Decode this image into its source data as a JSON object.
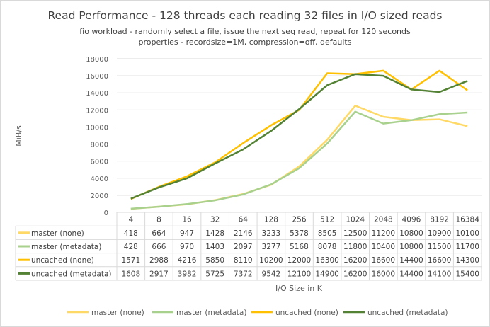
{
  "chart_data": {
    "type": "line",
    "title": "Read Performance - 128 threads each reading 32 files in I/O sized reads",
    "subtitles": [
      "fio workload - randomly select a file, issue the next seq read, repeat for 120 seconds",
      "properties - recordsize=1M, compression=off, defaults"
    ],
    "xlabel": "I/O Size in K",
    "ylabel": "MiB/s",
    "ylim": [
      0,
      18000
    ],
    "yticks": [
      0,
      2000,
      4000,
      6000,
      8000,
      10000,
      12000,
      14000,
      16000,
      18000
    ],
    "grid": true,
    "legend_position": "bottom",
    "categories": [
      "4",
      "8",
      "16",
      "32",
      "64",
      "128",
      "256",
      "512",
      "1024",
      "2048",
      "4096",
      "8192",
      "16384"
    ],
    "series": [
      {
        "name": "master (none)",
        "color": "#FFD966",
        "values": [
          418,
          664,
          947,
          1428,
          2146,
          3233,
          5378,
          8505,
          12500,
          11200,
          10800,
          10900,
          10100
        ]
      },
      {
        "name": "master (metadata)",
        "color": "#A9D18E",
        "values": [
          428,
          666,
          970,
          1403,
          2097,
          3277,
          5168,
          8078,
          11800,
          10400,
          10800,
          11500,
          11700
        ]
      },
      {
        "name": "uncached (none)",
        "color": "#FFC000",
        "values": [
          1571,
          2988,
          4216,
          5850,
          8110,
          10200,
          12000,
          16300,
          16200,
          16600,
          14400,
          16600,
          14300
        ]
      },
      {
        "name": "uncached (metadata)",
        "color": "#548235",
        "values": [
          1608,
          2917,
          3982,
          5725,
          7372,
          9542,
          12100,
          14900,
          16200,
          16000,
          14400,
          14100,
          15400
        ]
      }
    ]
  }
}
